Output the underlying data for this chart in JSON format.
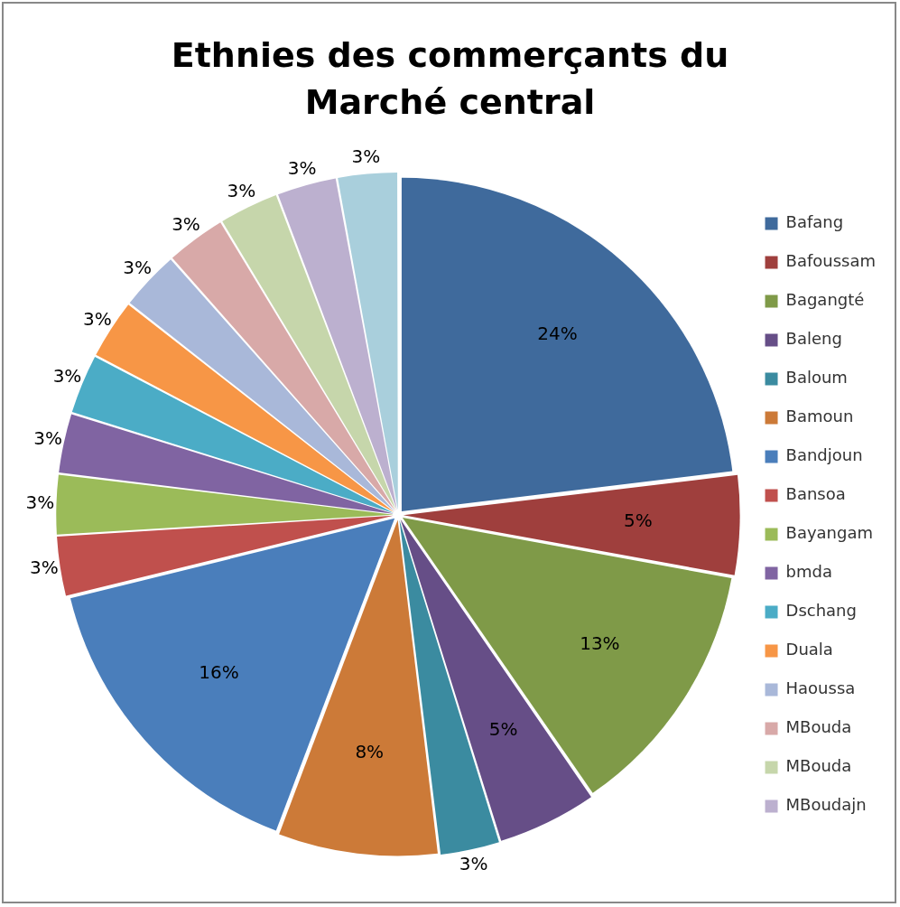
{
  "chart_data": {
    "type": "pie",
    "title": "Ethnies des commerçants du Marché central",
    "categories": [
      "Bafang",
      "Bafoussam",
      "Bagangté",
      "Baleng",
      "Baloum",
      "Bamoun",
      "Bandjoun",
      "Bansoa",
      "Bayangam",
      "bmda",
      "Dschang",
      "Duala",
      "Haoussa",
      "MBouda",
      "MBouda",
      "MBoudajn",
      null
    ],
    "values": [
      24,
      5,
      13,
      5,
      3,
      8,
      16,
      3,
      3,
      3,
      3,
      3,
      3,
      3,
      3,
      3,
      3
    ],
    "colors": [
      "#3f6a9c",
      "#9f3f3d",
      "#7f9a48",
      "#664e87",
      "#3b8ba0",
      "#cc7a38",
      "#4a7ebb",
      "#c0504d",
      "#9bbb59",
      "#8064a2",
      "#4bacc6",
      "#f79646",
      "#a9b8d9",
      "#d8a9a8",
      "#c6d6ab",
      "#bcb0cf",
      "#a9cfdc"
    ],
    "value_labels": [
      "24%",
      "5%",
      "13%",
      "5%",
      "3%",
      "8%",
      "16%",
      "3%",
      "3%",
      "3%",
      "3%",
      "3%",
      "3%",
      "3%",
      "3%",
      "3%",
      "3%"
    ],
    "legend": "right"
  }
}
